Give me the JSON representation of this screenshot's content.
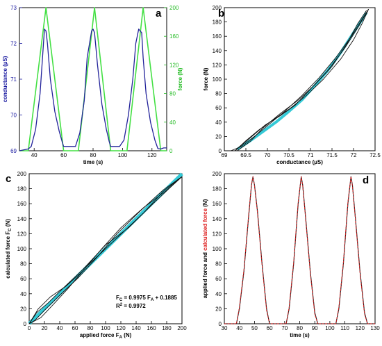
{
  "chart_data": [
    {
      "panel": "a",
      "type": "line",
      "xlabel": "time (s)",
      "ylabel": "conductance (µS)",
      "y2label": "force (N)",
      "xlim": [
        30,
        130
      ],
      "ylim": [
        69,
        73
      ],
      "y2lim": [
        0,
        200
      ],
      "xticks": [
        "40",
        "60",
        "80",
        "100",
        "120"
      ],
      "yticks": [
        "69",
        "70",
        "71",
        "72",
        "73"
      ],
      "y2ticks": [
        "0",
        "40",
        "80",
        "120",
        "160",
        "200"
      ],
      "colors": {
        "axis_left": "#1a1aa0",
        "axis_right": "#22bb22",
        "conductance": "#22229a",
        "force": "#44e044"
      },
      "series": [
        {
          "axis": "y",
          "color": "#22229a",
          "x": [
            30,
            36,
            38,
            41,
            44,
            46,
            47,
            48,
            49,
            51,
            54,
            57,
            59,
            60,
            64,
            68,
            71,
            74,
            76,
            79,
            80,
            81,
            83,
            86,
            89,
            91,
            92,
            98,
            101,
            104,
            107,
            109,
            111,
            112,
            113,
            114,
            116,
            119,
            122,
            124,
            126,
            128,
            130
          ],
          "y": [
            69.0,
            69.05,
            69.12,
            69.6,
            70.6,
            71.8,
            72.4,
            72.35,
            72.0,
            71.0,
            70.1,
            69.55,
            69.25,
            69.12,
            69.12,
            69.12,
            69.5,
            70.4,
            71.6,
            72.35,
            72.4,
            72.3,
            71.4,
            70.3,
            69.6,
            69.25,
            69.12,
            69.12,
            69.3,
            70.0,
            71.0,
            72.0,
            72.4,
            72.35,
            72.3,
            71.6,
            70.6,
            69.8,
            69.3,
            69.06,
            69.05,
            69.08,
            69.08
          ]
        },
        {
          "axis": "y2",
          "color": "#44e044",
          "x": [
            30,
            36,
            48,
            60,
            70,
            81,
            92,
            103,
            114,
            126,
            130
          ],
          "y": [
            0,
            0,
            200,
            0,
            0,
            200,
            0,
            0,
            200,
            0,
            0
          ]
        }
      ]
    },
    {
      "panel": "b",
      "type": "scatter",
      "xlabel": "conductance (µS)",
      "ylabel": "force (N)",
      "xlim": [
        69,
        72.5
      ],
      "ylim": [
        0,
        200
      ],
      "xticks": [
        "69",
        "69.5",
        "70",
        "70.5",
        "71",
        "71.5",
        "72",
        "72.5"
      ],
      "yticks": [
        "0",
        "20",
        "40",
        "60",
        "80",
        "100",
        "120",
        "140",
        "160",
        "180",
        "200"
      ],
      "colors": {
        "loops": "#111111",
        "fit": "#35c9d6"
      },
      "series": [
        {
          "x": [
            69.25,
            69.5,
            69.8,
            70.1,
            70.5,
            70.9,
            71.3,
            71.7,
            72.0,
            72.2,
            72.35
          ],
          "y": [
            0,
            14,
            29,
            42,
            58,
            77,
            100,
            128,
            155,
            178,
            198
          ]
        },
        {
          "x": [
            69.15,
            69.4,
            69.7,
            70.0,
            70.4,
            70.8,
            71.2,
            71.6,
            71.95,
            72.2,
            72.35
          ],
          "y": [
            0,
            6,
            20,
            35,
            55,
            77,
            102,
            131,
            160,
            184,
            198
          ]
        },
        {
          "x": [
            69.3,
            69.6,
            69.9,
            70.3,
            70.7,
            71.1,
            71.5,
            71.85,
            72.1,
            72.3
          ],
          "y": [
            0,
            13,
            32,
            52,
            70,
            92,
            118,
            150,
            178,
            196
          ]
        },
        {
          "x": [
            69.25,
            69.6,
            69.95,
            70.3,
            70.65,
            71.0,
            71.4,
            71.8,
            72.1,
            72.35
          ],
          "y": [
            0,
            18,
            36,
            49,
            64,
            86,
            112,
            144,
            172,
            198
          ]
        }
      ],
      "fit": {
        "x": [
          69.3,
          69.6,
          69.9,
          70.2,
          70.5,
          70.8,
          71.1,
          71.4,
          71.7,
          72.0,
          72.3
        ],
        "y": [
          2,
          14,
          27,
          40,
          55,
          71,
          91,
          112,
          137,
          165,
          193
        ]
      }
    },
    {
      "panel": "c",
      "type": "scatter",
      "xlabel_main": "applied force F",
      "xlabel_sub": "A",
      "xlabel_tail": " (N)",
      "ylabel_main": "calculated force F",
      "ylabel_sub": "C",
      "ylabel_tail": " (N)",
      "xlim": [
        0,
        200
      ],
      "ylim": [
        0,
        200
      ],
      "xticks": [
        "0",
        "20",
        "40",
        "60",
        "80",
        "100",
        "120",
        "140",
        "160",
        "180",
        "200"
      ],
      "yticks": [
        "0",
        "20",
        "40",
        "60",
        "80",
        "100",
        "120",
        "140",
        "160",
        "180",
        "200"
      ],
      "annotation": {
        "eq_a": "F",
        "eq_b": "C",
        "eq_c": " = 0.9975 F",
        "eq_d": "A",
        "eq_e": " + 0.1885",
        "r2_a": "R",
        "r2_b": "2",
        "r2_c": " = 0.9972"
      },
      "colors": {
        "loops": "#111111",
        "fit": "#35c9d6"
      },
      "fit": {
        "slope": 0.9975,
        "intercept": 0.1885,
        "r2": 0.9972
      },
      "series": [
        {
          "x": [
            0,
            10,
            25,
            45,
            70,
            100,
            130,
            160,
            185,
            200
          ],
          "y": [
            0,
            15,
            28,
            48,
            72,
            105,
            128,
            158,
            182,
            196
          ]
        },
        {
          "x": [
            0,
            15,
            30,
            50,
            75,
            100,
            125,
            150,
            175,
            200
          ],
          "y": [
            0,
            8,
            24,
            46,
            76,
            100,
            124,
            148,
            176,
            196
          ]
        },
        {
          "x": [
            0,
            12,
            28,
            48,
            70,
            95,
            120,
            150,
            180,
            200
          ],
          "y": [
            0,
            20,
            36,
            50,
            70,
            100,
            128,
            155,
            178,
            196
          ]
        },
        {
          "x": [
            0,
            8,
            20,
            40,
            65,
            90,
            115,
            145,
            175,
            200
          ],
          "y": [
            0,
            5,
            18,
            38,
            62,
            90,
            120,
            150,
            178,
            196
          ]
        }
      ]
    },
    {
      "panel": "d",
      "type": "line",
      "xlabel": "time (s)",
      "ylabel_parts": [
        "applied force and ",
        "calculated force",
        " (N)"
      ],
      "xlim": [
        30,
        130
      ],
      "ylim": [
        0,
        200
      ],
      "xticks": [
        "30",
        "40",
        "50",
        "60",
        "70",
        "80",
        "90",
        "100",
        "110",
        "120",
        "130"
      ],
      "yticks": [
        "0",
        "20",
        "40",
        "60",
        "80",
        "100",
        "120",
        "140",
        "160",
        "180",
        "200"
      ],
      "colors": {
        "applied": "#222222",
        "calculated": "#dd1b1b",
        "ylabel_red": "#dd1b1b"
      },
      "series": [
        {
          "color": "#222222",
          "x": [
            30,
            38,
            40,
            43,
            46,
            48,
            49,
            50,
            52,
            55,
            58,
            60,
            71,
            73,
            76,
            79,
            81,
            82,
            84,
            87,
            90,
            92,
            104,
            106,
            109,
            112,
            114,
            115,
            117,
            120,
            123,
            125,
            130
          ],
          "y": [
            0,
            0,
            20,
            70,
            140,
            185,
            196,
            185,
            150,
            80,
            20,
            0,
            0,
            20,
            80,
            160,
            196,
            185,
            140,
            70,
            15,
            0,
            0,
            20,
            80,
            160,
            196,
            185,
            140,
            70,
            15,
            0,
            0
          ]
        },
        {
          "color": "#dd1b1b",
          "x": [
            30,
            38,
            40,
            43,
            46,
            48,
            49,
            50,
            52,
            55,
            58,
            60,
            71,
            73,
            76,
            79,
            81,
            82,
            84,
            87,
            90,
            92,
            104,
            106,
            109,
            112,
            114,
            115,
            117,
            120,
            123,
            125,
            130
          ],
          "y": [
            0,
            0,
            22,
            72,
            142,
            186,
            196,
            184,
            148,
            78,
            18,
            0,
            0,
            22,
            82,
            162,
            196,
            184,
            138,
            68,
            13,
            0,
            0,
            22,
            82,
            162,
            196,
            184,
            138,
            68,
            13,
            0,
            0
          ]
        }
      ]
    }
  ]
}
